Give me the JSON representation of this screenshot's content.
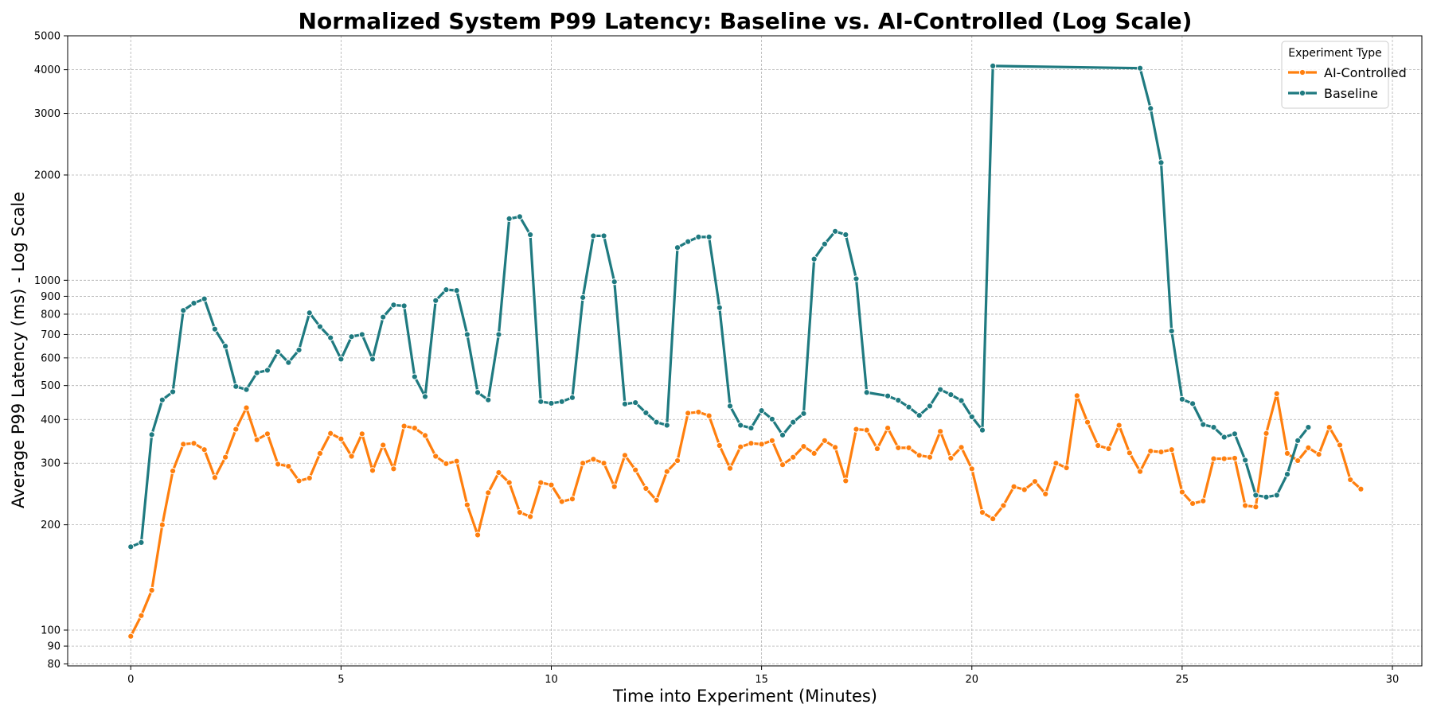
{
  "chart_data": {
    "type": "line",
    "title": "Normalized System P99 Latency: Baseline vs. AI-Controlled (Log Scale)",
    "xlabel": "Time into Experiment (Minutes)",
    "ylabel": "Average P99 Latency (ms) - Log Scale",
    "yscale": "log",
    "xlim": [
      -1.5,
      30.7
    ],
    "ylim": [
      79,
      5000
    ],
    "x_ticks": [
      0,
      5,
      10,
      15,
      20,
      25,
      30
    ],
    "x_tick_labels": [
      "0",
      "5",
      "10",
      "15",
      "20",
      "25",
      "30"
    ],
    "y_ticks": [
      80,
      90,
      100,
      200,
      300,
      400,
      500,
      600,
      700,
      800,
      900,
      1000,
      2000,
      3000,
      4000,
      5000
    ],
    "y_tick_labels": [
      "80",
      "90",
      "100",
      "200",
      "300",
      "400",
      "500",
      "600",
      "700",
      "800",
      "900",
      "1000",
      "2000",
      "3000",
      "4000",
      "5000"
    ],
    "grid": true,
    "legend": {
      "title": "Experiment Type",
      "position": "top-right"
    },
    "series": [
      {
        "name": "AI-Controlled",
        "color": "#ff7f0e",
        "x": [
          0,
          0.25,
          0.5,
          0.75,
          1,
          1.25,
          1.5,
          1.75,
          2,
          2.25,
          2.5,
          2.75,
          3,
          3.25,
          3.5,
          3.75,
          4,
          4.25,
          4.5,
          4.75,
          5,
          5.25,
          5.5,
          5.75,
          6,
          6.25,
          6.5,
          6.75,
          7,
          7.25,
          7.5,
          7.75,
          8,
          8.25,
          8.5,
          8.75,
          9,
          9.25,
          9.5,
          9.75,
          10,
          10.25,
          10.5,
          10.75,
          11,
          11.25,
          11.5,
          11.75,
          12,
          12.25,
          12.5,
          12.75,
          13,
          13.25,
          13.5,
          13.75,
          14,
          14.25,
          14.5,
          14.75,
          15,
          15.25,
          15.5,
          15.75,
          16,
          16.25,
          16.5,
          16.75,
          17,
          17.25,
          17.5,
          17.75,
          18,
          18.25,
          18.5,
          18.75,
          19,
          19.25,
          19.5,
          19.75,
          20,
          20.25,
          20.5,
          20.75,
          21,
          21.25,
          21.5,
          21.75,
          22,
          22.25,
          22.5,
          22.75,
          23,
          23.25,
          23.5,
          23.75,
          24,
          24.25,
          24.5,
          24.75,
          25,
          25.25,
          25.5,
          25.75,
          26,
          26.25,
          26.5,
          26.75,
          27,
          27.25,
          27.5,
          27.75,
          28,
          28.25,
          28.5,
          28.75,
          29,
          29.25
        ],
        "values": [
          96,
          110,
          130,
          200,
          285,
          340,
          342,
          328,
          273,
          312,
          375,
          432,
          350,
          364,
          298,
          294,
          267,
          272,
          320,
          365,
          352,
          314,
          364,
          286,
          338,
          289,
          383,
          378,
          360,
          314,
          299,
          304,
          228,
          187,
          247,
          282,
          264,
          217,
          211,
          264,
          260,
          233,
          237,
          300,
          308,
          300,
          257,
          316,
          287,
          254,
          235,
          284,
          305,
          417,
          420,
          410,
          337,
          290,
          334,
          342,
          340,
          348,
          297,
          312,
          335,
          320,
          348,
          333,
          267,
          375,
          373,
          330,
          378,
          332,
          332,
          316,
          312,
          370,
          310,
          333,
          289,
          217,
          208,
          227,
          257,
          252,
          266,
          245,
          300,
          291,
          468,
          393,
          337,
          330,
          385,
          321,
          284,
          325,
          323,
          328,
          248,
          230,
          234,
          309,
          309,
          310,
          227,
          225,
          365,
          474,
          320,
          305,
          332,
          318,
          380,
          338,
          269,
          253
        ]
      },
      {
        "name": "Baseline",
        "color": "#1f7a80",
        "x": [
          0,
          0.25,
          0.5,
          0.75,
          1,
          1.25,
          1.5,
          1.75,
          2,
          2.25,
          2.5,
          2.75,
          3,
          3.25,
          3.5,
          3.75,
          4,
          4.25,
          4.5,
          4.75,
          5,
          5.25,
          5.5,
          5.75,
          6,
          6.25,
          6.5,
          6.75,
          7,
          7.25,
          7.5,
          7.75,
          8,
          8.25,
          8.5,
          8.75,
          9,
          9.25,
          9.5,
          9.75,
          10,
          10.25,
          10.5,
          10.75,
          11,
          11.25,
          11.5,
          11.75,
          12,
          12.25,
          12.5,
          12.75,
          13,
          13.25,
          13.5,
          13.75,
          14,
          14.25,
          14.5,
          14.75,
          15,
          15.25,
          15.5,
          15.75,
          16,
          16.25,
          16.5,
          16.75,
          17,
          17.25,
          17.5,
          18,
          18.25,
          18.5,
          18.75,
          19,
          19.25,
          19.5,
          19.75,
          20,
          20.25,
          20.5,
          24,
          24.25,
          24.5,
          24.75,
          25,
          25.25,
          25.5,
          25.75,
          26,
          26.25,
          26.5,
          26.75,
          27,
          27.25,
          27.5,
          27.75,
          28
        ],
        "values": [
          173,
          178,
          362,
          455,
          480,
          820,
          860,
          885,
          725,
          648,
          497,
          487,
          544,
          553,
          625,
          582,
          632,
          807,
          737,
          685,
          595,
          690,
          700,
          595,
          785,
          850,
          845,
          530,
          465,
          875,
          940,
          935,
          700,
          478,
          455,
          700,
          1500,
          1520,
          1350,
          450,
          445,
          450,
          462,
          893,
          1340,
          1340,
          990,
          443,
          447,
          418,
          393,
          385,
          1240,
          1290,
          1330,
          1330,
          835,
          437,
          385,
          378,
          424,
          401,
          361,
          393,
          416,
          1150,
          1270,
          1380,
          1350,
          1010,
          478,
          467,
          454,
          434,
          411,
          437,
          487,
          471,
          453,
          407,
          373,
          4100,
          4040,
          3100,
          2170,
          716,
          457,
          444,
          387,
          380,
          356,
          364,
          306,
          243,
          240,
          243,
          279,
          348,
          380
        ]
      }
    ]
  }
}
